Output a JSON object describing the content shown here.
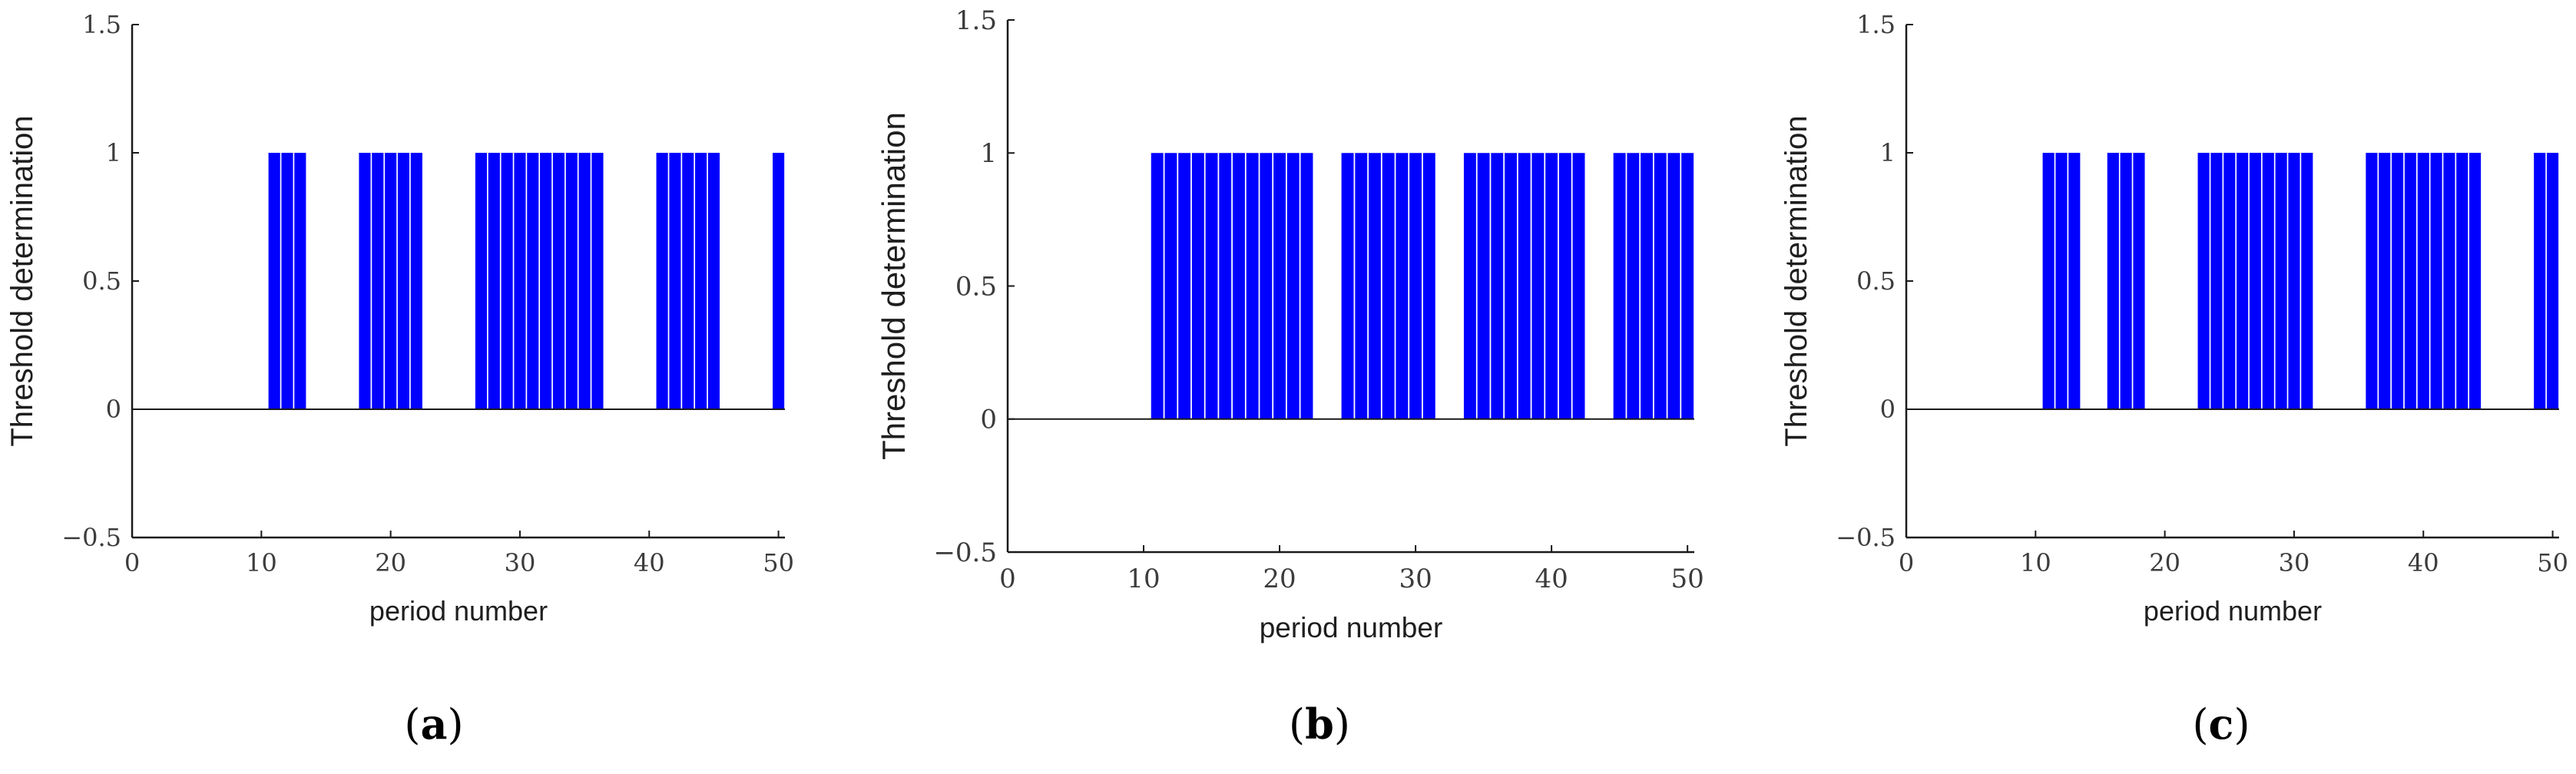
{
  "figure": {
    "panels": [
      {
        "caption_open": "(",
        "caption_letter": "a",
        "caption_close": ")"
      },
      {
        "caption_open": "(",
        "caption_letter": "b",
        "caption_close": ")"
      },
      {
        "caption_open": "(",
        "caption_letter": "c",
        "caption_close": ")"
      }
    ]
  },
  "chart_data": [
    {
      "type": "bar",
      "xlabel": "period number",
      "ylabel": "Threshold determination",
      "xlim": [
        0,
        50.5
      ],
      "ylim": [
        -0.5,
        1.5
      ],
      "xticks": [
        0,
        10,
        20,
        30,
        40,
        50
      ],
      "yticks": [
        -0.5,
        0,
        0.5,
        1,
        1.5
      ],
      "ytick_labels": [
        "−0.5",
        "0",
        "0.5",
        "1",
        "1.5"
      ],
      "bar_color": "#0000ff",
      "x": [
        11,
        12,
        13,
        18,
        19,
        20,
        21,
        22,
        27,
        28,
        29,
        30,
        31,
        32,
        33,
        34,
        35,
        36,
        41,
        42,
        43,
        44,
        45,
        50
      ],
      "values": [
        1,
        1,
        1,
        1,
        1,
        1,
        1,
        1,
        1,
        1,
        1,
        1,
        1,
        1,
        1,
        1,
        1,
        1,
        1,
        1,
        1,
        1,
        1,
        1
      ]
    },
    {
      "type": "bar",
      "xlabel": "period number",
      "ylabel": "Threshold determination",
      "xlim": [
        0,
        50.5
      ],
      "ylim": [
        -0.5,
        1.5
      ],
      "xticks": [
        0,
        10,
        20,
        30,
        40,
        50
      ],
      "yticks": [
        -0.5,
        0,
        0.5,
        1,
        1.5
      ],
      "ytick_labels": [
        "−0.5",
        "0",
        "0.5",
        "1",
        "1.5"
      ],
      "bar_color": "#0000ff",
      "x": [
        11,
        12,
        13,
        14,
        15,
        16,
        17,
        18,
        19,
        20,
        21,
        22,
        25,
        26,
        27,
        28,
        29,
        30,
        31,
        34,
        35,
        36,
        37,
        38,
        39,
        40,
        41,
        42,
        45,
        46,
        47,
        48,
        49,
        50
      ],
      "values": [
        1,
        1,
        1,
        1,
        1,
        1,
        1,
        1,
        1,
        1,
        1,
        1,
        1,
        1,
        1,
        1,
        1,
        1,
        1,
        1,
        1,
        1,
        1,
        1,
        1,
        1,
        1,
        1,
        1,
        1,
        1,
        1,
        1,
        1
      ]
    },
    {
      "type": "bar",
      "xlabel": "period number",
      "ylabel": "Threshold determination",
      "xlim": [
        0,
        50.5
      ],
      "ylim": [
        -0.5,
        1.5
      ],
      "xticks": [
        0,
        10,
        20,
        30,
        40,
        50
      ],
      "yticks": [
        -0.5,
        0,
        0.5,
        1,
        1.5
      ],
      "ytick_labels": [
        "−0.5",
        "0",
        "0.5",
        "1",
        "1.5"
      ],
      "bar_color": "#0000ff",
      "x": [
        11,
        12,
        13,
        16,
        17,
        18,
        23,
        24,
        25,
        26,
        27,
        28,
        29,
        30,
        31,
        36,
        37,
        38,
        39,
        40,
        41,
        42,
        43,
        44,
        49,
        50
      ],
      "values": [
        1,
        1,
        1,
        1,
        1,
        1,
        1,
        1,
        1,
        1,
        1,
        1,
        1,
        1,
        1,
        1,
        1,
        1,
        1,
        1,
        1,
        1,
        1,
        1,
        1,
        1
      ]
    }
  ]
}
